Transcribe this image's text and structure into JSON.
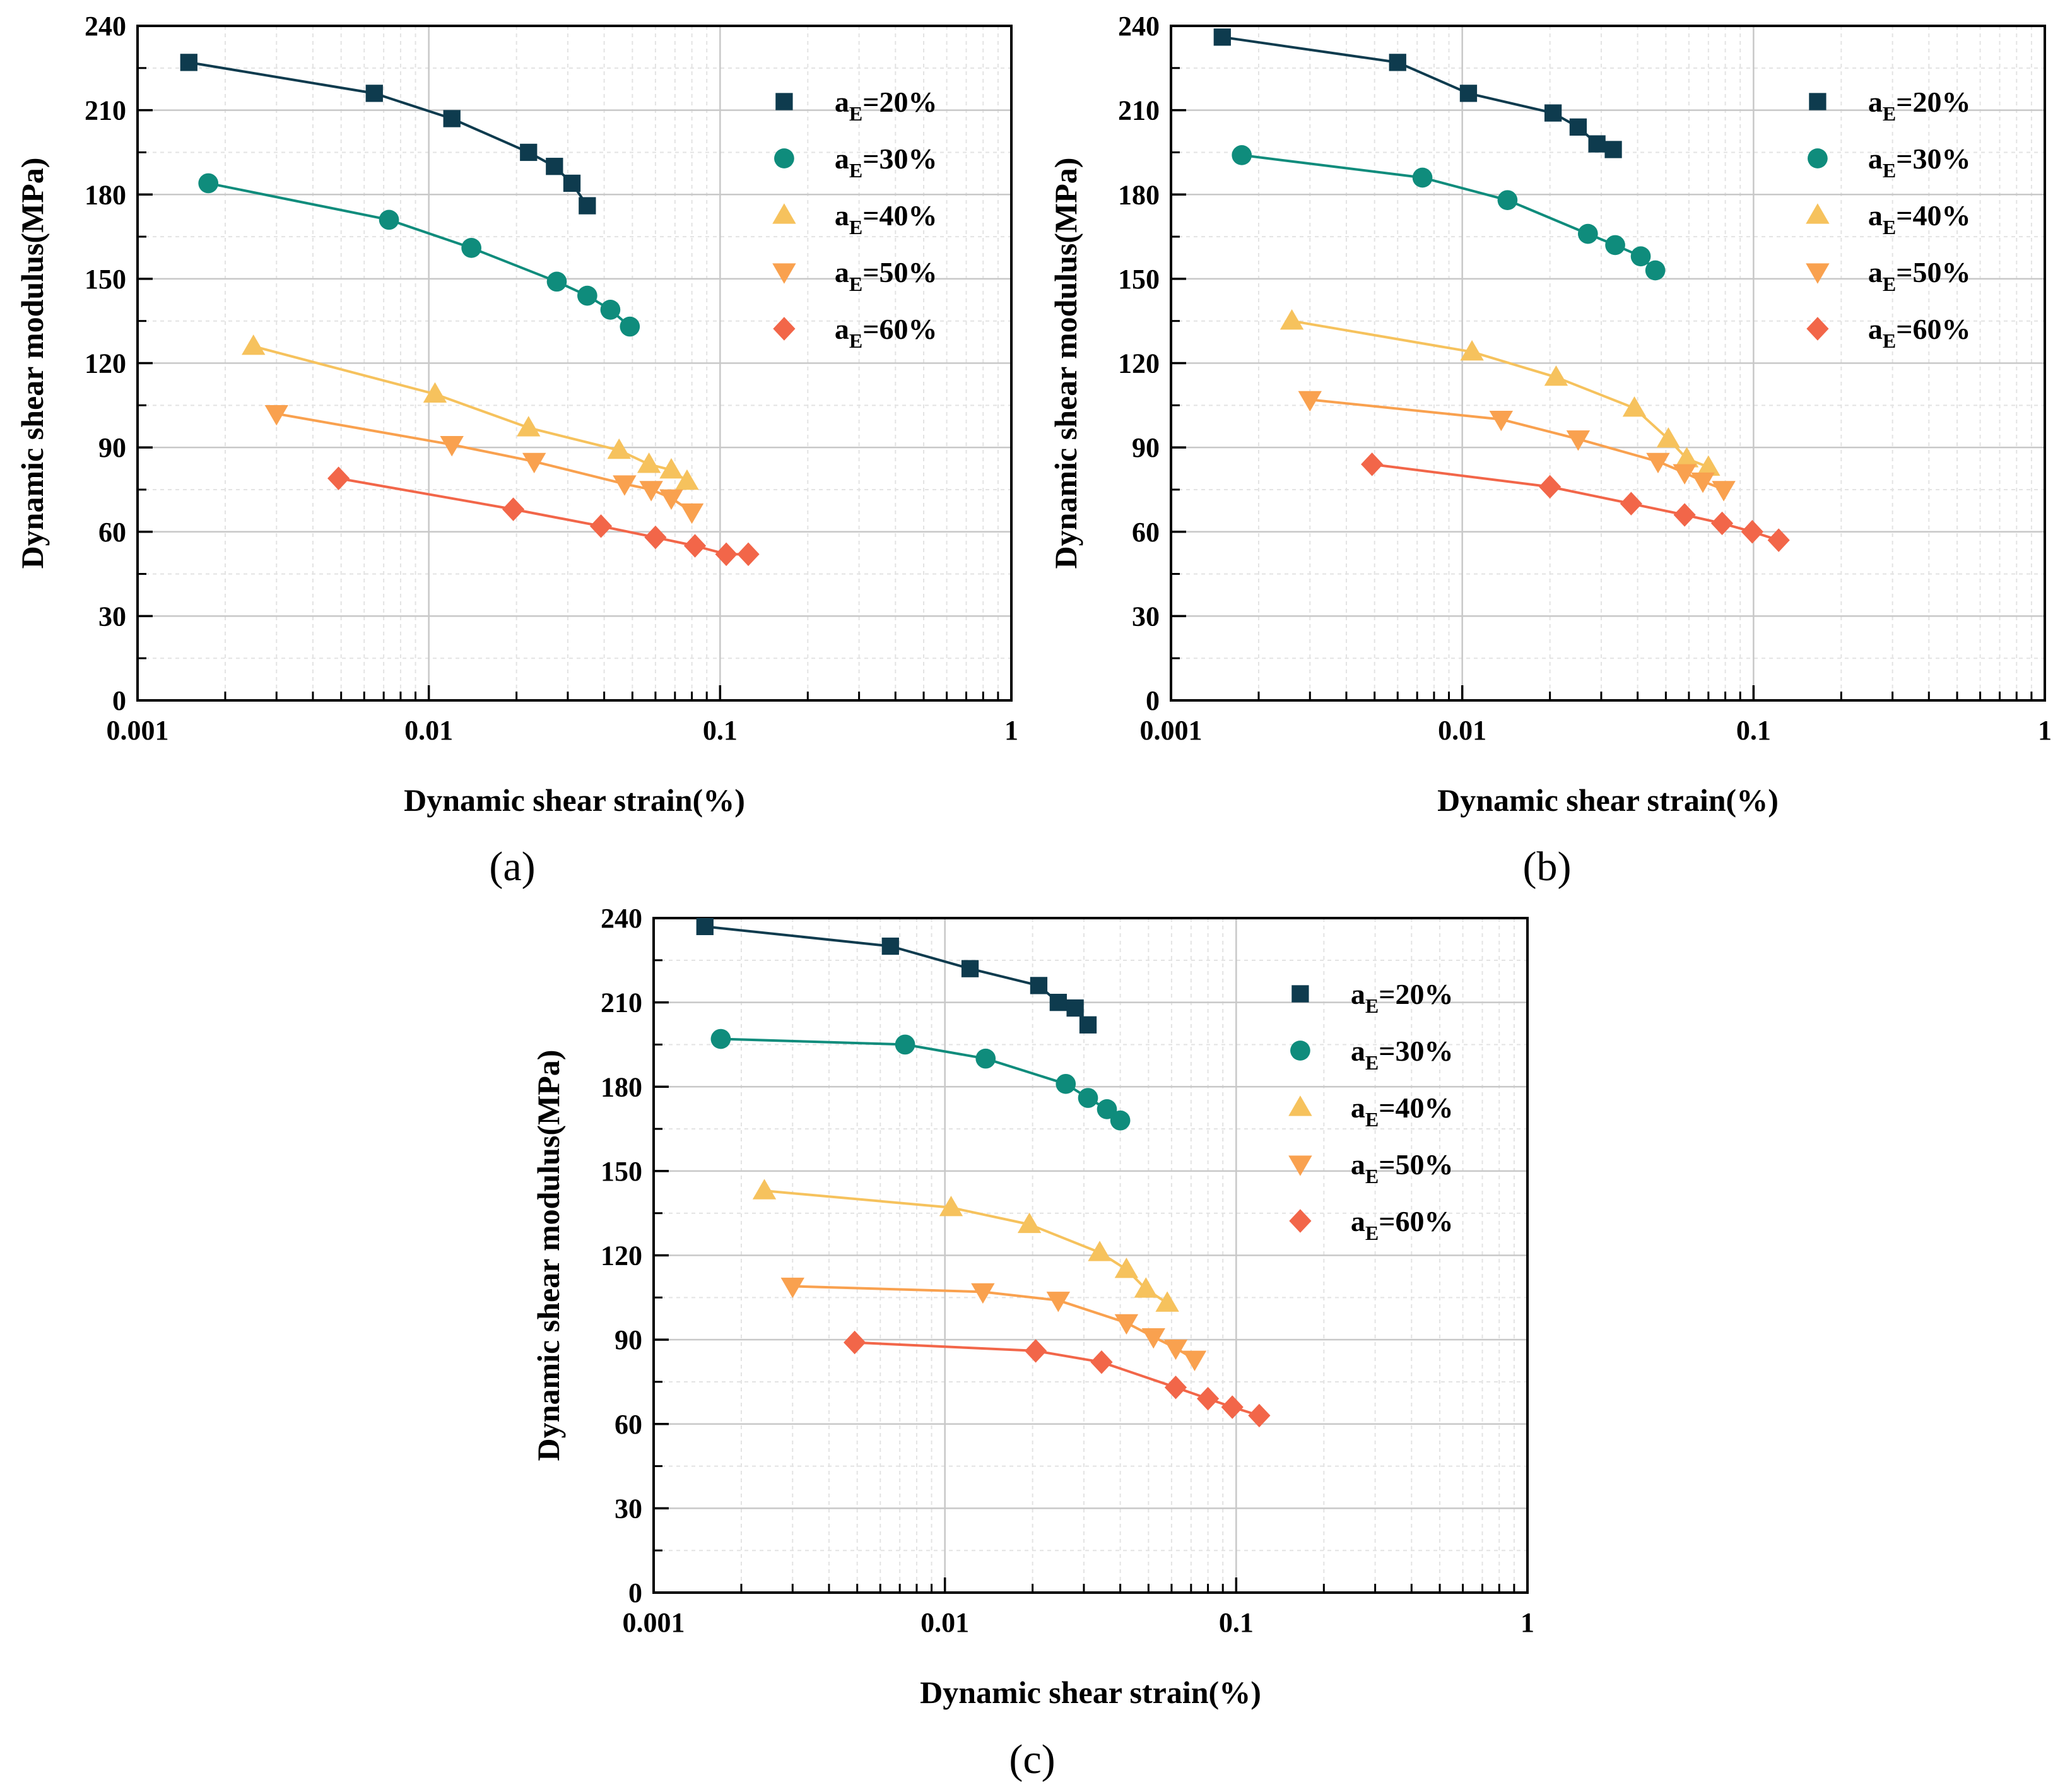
{
  "colors": {
    "aE20": "#0e3b4e",
    "aE30": "#0f8c7c",
    "aE40": "#f6c25d",
    "aE50": "#f9a14f",
    "aE60": "#f26649"
  },
  "chart_data": [
    {
      "panel": "(a)",
      "type": "scatter",
      "xscale": "log",
      "xlim": [
        0.001,
        1
      ],
      "ylim": [
        0,
        240
      ],
      "xticks": [
        "0.001",
        "0.01",
        "0.1",
        "1"
      ],
      "yticks": [
        "0",
        "30",
        "60",
        "90",
        "120",
        "150",
        "180",
        "210",
        "240"
      ],
      "xlabel": "Dynamic shear strain(%)",
      "ylabel": "Dynamic shear modulus(MPa)",
      "grid": true,
      "legend_position": "top-right",
      "series": [
        {
          "name": "aE=20%",
          "legend_main": "a",
          "legend_sub": "E",
          "legend_rest": "=20%",
          "marker": "square",
          "color_key": "aE20",
          "x": [
            0.0015,
            0.0065,
            0.012,
            0.022,
            0.027,
            0.031,
            0.035
          ],
          "y": [
            227,
            216,
            207,
            195,
            190,
            184,
            176
          ]
        },
        {
          "name": "aE=30%",
          "legend_main": "a",
          "legend_sub": "E",
          "legend_rest": "=30%",
          "marker": "circle",
          "color_key": "aE30",
          "x": [
            0.00175,
            0.0073,
            0.014,
            0.0275,
            0.035,
            0.042,
            0.049
          ],
          "y": [
            184,
            171,
            161,
            149,
            144,
            139,
            133
          ]
        },
        {
          "name": "aE=40%",
          "legend_main": "a",
          "legend_sub": "E",
          "legend_rest": "=40%",
          "marker": "triangle-up",
          "color_key": "aE40",
          "x": [
            0.0025,
            0.0105,
            0.022,
            0.045,
            0.057,
            0.068,
            0.077
          ],
          "y": [
            126,
            109,
            97,
            89,
            84,
            82,
            78
          ]
        },
        {
          "name": "aE=50%",
          "legend_main": "a",
          "legend_sub": "E",
          "legend_rest": "=50%",
          "marker": "triangle-down",
          "color_key": "aE50",
          "x": [
            0.003,
            0.012,
            0.023,
            0.047,
            0.058,
            0.068,
            0.08
          ],
          "y": [
            102,
            91,
            85,
            77,
            75,
            72,
            67
          ]
        },
        {
          "name": "aE=60%",
          "legend_main": "a",
          "legend_sub": "E",
          "legend_rest": "=60%",
          "marker": "diamond",
          "color_key": "aE60",
          "x": [
            0.0049,
            0.0195,
            0.039,
            0.06,
            0.082,
            0.105,
            0.125
          ],
          "y": [
            79,
            68,
            62,
            58,
            55,
            52,
            52
          ]
        }
      ]
    },
    {
      "panel": "(b)",
      "type": "scatter",
      "xscale": "log",
      "xlim": [
        0.001,
        1
      ],
      "ylim": [
        0,
        240
      ],
      "xticks": [
        "0.001",
        "0.01",
        "0.1",
        "1"
      ],
      "yticks": [
        "0",
        "30",
        "60",
        "90",
        "120",
        "150",
        "180",
        "210",
        "240"
      ],
      "xlabel": "Dynamic shear strain(%)",
      "ylabel": "Dynamic shear modulus(MPa)",
      "grid": true,
      "legend_position": "top-right",
      "series": [
        {
          "name": "aE=20%",
          "legend_main": "a",
          "legend_sub": "E",
          "legend_rest": "=20%",
          "marker": "square",
          "color_key": "aE20",
          "x": [
            0.0015,
            0.006,
            0.0105,
            0.0205,
            0.025,
            0.029,
            0.033
          ],
          "y": [
            236,
            227,
            216,
            209,
            204,
            198,
            196
          ]
        },
        {
          "name": "aE=30%",
          "legend_main": "a",
          "legend_sub": "E",
          "legend_rest": "=30%",
          "marker": "circle",
          "color_key": "aE30",
          "x": [
            0.00175,
            0.0073,
            0.0143,
            0.027,
            0.0335,
            0.041,
            0.046
          ],
          "y": [
            194,
            186,
            178,
            166,
            162,
            158,
            153
          ]
        },
        {
          "name": "aE=40%",
          "legend_main": "a",
          "legend_sub": "E",
          "legend_rest": "=40%",
          "marker": "triangle-up",
          "color_key": "aE40",
          "x": [
            0.0026,
            0.0108,
            0.021,
            0.039,
            0.051,
            0.059,
            0.07
          ],
          "y": [
            135,
            124,
            115,
            104,
            93,
            86,
            83
          ]
        },
        {
          "name": "aE=50%",
          "legend_main": "a",
          "legend_sub": "E",
          "legend_rest": "=50%",
          "marker": "triangle-down",
          "color_key": "aE50",
          "x": [
            0.003,
            0.0136,
            0.025,
            0.047,
            0.058,
            0.067,
            0.079
          ],
          "y": [
            107,
            100,
            93,
            85,
            81,
            78,
            75
          ]
        },
        {
          "name": "aE=60%",
          "legend_main": "a",
          "legend_sub": "E",
          "legend_rest": "=60%",
          "marker": "diamond",
          "color_key": "aE60",
          "x": [
            0.0049,
            0.02,
            0.038,
            0.058,
            0.078,
            0.099,
            0.122
          ],
          "y": [
            84,
            76,
            70,
            66,
            63,
            60,
            57
          ]
        }
      ]
    },
    {
      "panel": "(c)",
      "type": "scatter",
      "xscale": "log",
      "xlim": [
        0.001,
        1
      ],
      "ylim": [
        0,
        240
      ],
      "xticks": [
        "0.001",
        "0.01",
        "0.1",
        "1"
      ],
      "yticks": [
        "0",
        "30",
        "60",
        "90",
        "120",
        "150",
        "180",
        "210",
        "240"
      ],
      "xlabel": "Dynamic shear strain(%)",
      "ylabel": "Dynamic shear modulus(MPa)",
      "grid": true,
      "legend_position": "top-right",
      "series": [
        {
          "name": "aE=20%",
          "legend_main": "a",
          "legend_sub": "E",
          "legend_rest": "=20%",
          "marker": "square",
          "color_key": "aE20",
          "x": [
            0.0015,
            0.0065,
            0.0122,
            0.021,
            0.0245,
            0.028,
            0.031
          ],
          "y": [
            237,
            230,
            222,
            216,
            210,
            208,
            202
          ]
        },
        {
          "name": "aE=30%",
          "legend_main": "a",
          "legend_sub": "E",
          "legend_rest": "=30%",
          "marker": "circle",
          "color_key": "aE30",
          "x": [
            0.0017,
            0.0073,
            0.0138,
            0.026,
            0.031,
            0.036,
            0.04
          ],
          "y": [
            197,
            195,
            190,
            181,
            176,
            172,
            168
          ]
        },
        {
          "name": "aE=40%",
          "legend_main": "a",
          "legend_sub": "E",
          "legend_rest": "=40%",
          "marker": "triangle-up",
          "color_key": "aE40",
          "x": [
            0.0024,
            0.0105,
            0.0195,
            0.034,
            0.042,
            0.049,
            0.058
          ],
          "y": [
            143,
            137,
            131,
            121,
            115,
            108,
            103
          ]
        },
        {
          "name": "aE=50%",
          "legend_main": "a",
          "legend_sub": "E",
          "legend_rest": "=50%",
          "marker": "triangle-down",
          "color_key": "aE50",
          "x": [
            0.003,
            0.0135,
            0.0245,
            0.042,
            0.052,
            0.062,
            0.072
          ],
          "y": [
            109,
            107,
            104,
            96,
            91,
            87,
            83
          ]
        },
        {
          "name": "aE=60%",
          "legend_main": "a",
          "legend_sub": "E",
          "legend_rest": "=60%",
          "marker": "diamond",
          "color_key": "aE60",
          "x": [
            0.0049,
            0.0205,
            0.0345,
            0.062,
            0.08,
            0.097,
            0.12
          ],
          "y": [
            89,
            86,
            82,
            73,
            69,
            66,
            63
          ]
        }
      ]
    }
  ]
}
